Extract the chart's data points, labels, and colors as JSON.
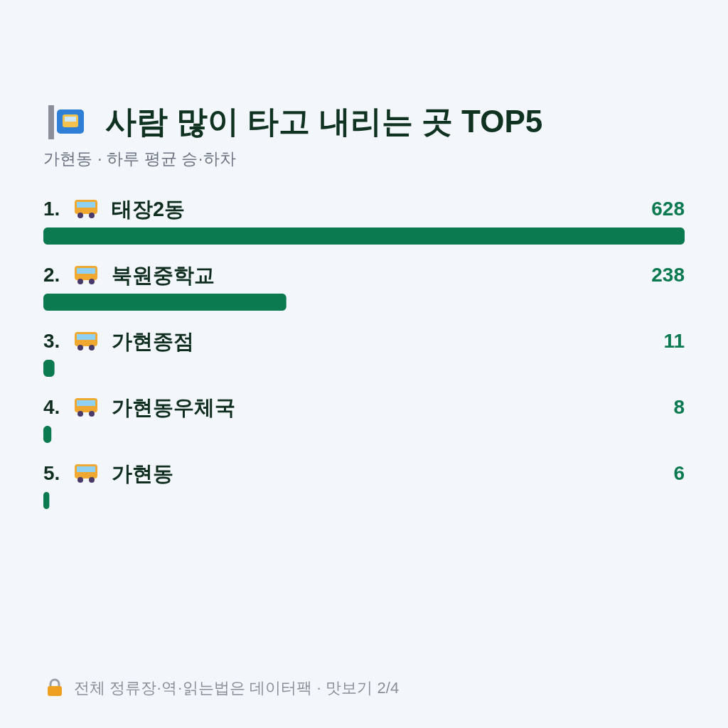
{
  "chart_data": {
    "type": "bar",
    "orientation": "horizontal",
    "title": "사람 많이 타고 내리는 곳 TOP5",
    "subtitle": "가현동 · 하루 평균 승·하차",
    "categories": [
      "1. 태장2동",
      "2. 북원중학교",
      "3. 가현종점",
      "4. 가현동우체국",
      "5. 가현동"
    ],
    "values": [
      628,
      238,
      11,
      8,
      6
    ],
    "color": "#0b7a50",
    "data_labels": true,
    "annotations": [
      "전체 정류장·역·읽는법은 데이터팩 · 맛보기 2/4"
    ]
  }
}
